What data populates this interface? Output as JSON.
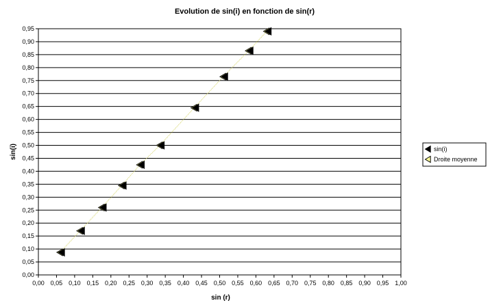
{
  "chart_data": {
    "type": "scatter",
    "title": "Evolution de sin(i) en fonction de sin(r)",
    "xlabel": "sin (r)",
    "ylabel": "sin(i)",
    "xlim": [
      0,
      1
    ],
    "ylim": [
      0,
      0.95
    ],
    "x_ticks": [
      "0,00",
      "0,05",
      "0,10",
      "0,15",
      "0,20",
      "0,25",
      "0,30",
      "0,35",
      "0,40",
      "0,45",
      "0,50",
      "0,55",
      "0,60",
      "0,65",
      "0,70",
      "0,75",
      "0,80",
      "0,85",
      "0,90",
      "0,95",
      "1,00"
    ],
    "y_ticks": [
      "0,00",
      "0,05",
      "0,10",
      "0,15",
      "0,20",
      "0,25",
      "0,30",
      "0,35",
      "0,40",
      "0,45",
      "0,50",
      "0,55",
      "0,60",
      "0,65",
      "0,70",
      "0,75",
      "0,80",
      "0,85",
      "0,90",
      "0,95"
    ],
    "grid": "horizontal",
    "legend_position": "right",
    "series": [
      {
        "name": "sin(i)",
        "marker": "left-triangle",
        "color": "#000000",
        "x": [
          0.065,
          0.12,
          0.18,
          0.235,
          0.285,
          0.34,
          0.435,
          0.515,
          0.585,
          0.635
        ],
        "y": [
          0.087,
          0.17,
          0.26,
          0.345,
          0.425,
          0.5,
          0.645,
          0.765,
          0.865,
          0.94
        ]
      },
      {
        "name": "Droite moyenne",
        "marker": "left-triangle-open",
        "color": "#FFFF99",
        "x": [
          0.06,
          0.115,
          0.175,
          0.23,
          0.28,
          0.335,
          0.43,
          0.51,
          0.58,
          0.63
        ],
        "y": [
          0.087,
          0.17,
          0.26,
          0.345,
          0.425,
          0.5,
          0.645,
          0.765,
          0.865,
          0.94
        ]
      }
    ]
  }
}
